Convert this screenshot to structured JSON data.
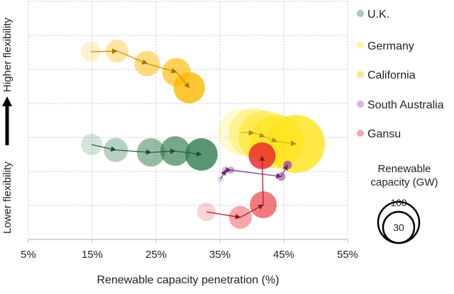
{
  "chart_data": {
    "type": "scatter",
    "subtype": "bubble-trajectory",
    "xlabel": "Renewable capacity penetration (%)",
    "ylabel_top": "Higher flexibility",
    "ylabel_bottom": "Lower flexibility",
    "xlim": [
      5,
      55
    ],
    "xticks": [
      5,
      15,
      25,
      35,
      45,
      55
    ],
    "xtick_labels": [
      "5%",
      "15%",
      "25%",
      "35%",
      "45%",
      "55%"
    ],
    "ylim": [
      0,
      7
    ],
    "grid": true,
    "legend_placement": "right",
    "size_legend": {
      "title_line1": "Renewable",
      "title_line2": "capacity (GW)",
      "values": [
        "100",
        "30"
      ]
    },
    "series": [
      {
        "name": "U.K.",
        "color": "#2f7a4c",
        "points": [
          {
            "x": 14.9,
            "y": 2.79,
            "size": 29
          },
          {
            "x": 18.7,
            "y": 2.63,
            "size": 37
          },
          {
            "x": 24.2,
            "y": 2.56,
            "size": 51
          },
          {
            "x": 28.0,
            "y": 2.6,
            "size": 56
          },
          {
            "x": 32.1,
            "y": 2.5,
            "size": 67
          }
        ]
      },
      {
        "name": "Germany",
        "color": "#ffe41a",
        "points": [
          {
            "x": 38.3,
            "y": 3.15,
            "size": 139
          },
          {
            "x": 40.3,
            "y": 3.13,
            "size": 156
          },
          {
            "x": 42.0,
            "y": 3.02,
            "size": 175
          },
          {
            "x": 43.9,
            "y": 2.88,
            "size": 184
          },
          {
            "x": 46.9,
            "y": 2.81,
            "size": 214
          }
        ]
      },
      {
        "name": "California",
        "color": "#ffb800",
        "points": [
          {
            "x": 14.8,
            "y": 5.52,
            "size": 25
          },
          {
            "x": 18.9,
            "y": 5.54,
            "size": 33
          },
          {
            "x": 23.6,
            "y": 5.17,
            "size": 41
          },
          {
            "x": 28.2,
            "y": 4.92,
            "size": 51
          },
          {
            "x": 30.2,
            "y": 4.46,
            "size": 62
          }
        ]
      },
      {
        "name": "South Australia",
        "color": "#a346a8",
        "points": [
          {
            "x": 35.1,
            "y": 1.77,
            "size": 3.2
          },
          {
            "x": 35.9,
            "y": 2.04,
            "size": 3.2
          },
          {
            "x": 36.7,
            "y": 2.04,
            "size": 3.2
          },
          {
            "x": 44.6,
            "y": 1.85,
            "size": 4.6
          },
          {
            "x": 45.6,
            "y": 2.19,
            "size": 4.6
          }
        ]
      },
      {
        "name": "Gansu",
        "color": "#e8222a",
        "points": [
          {
            "x": 32.9,
            "y": 0.81,
            "size": 22
          },
          {
            "x": 38.2,
            "y": 0.65,
            "size": 33
          },
          {
            "x": 41.8,
            "y": 1.02,
            "size": 46
          },
          {
            "x": 41.6,
            "y": 2.46,
            "size": 46
          }
        ]
      }
    ]
  }
}
